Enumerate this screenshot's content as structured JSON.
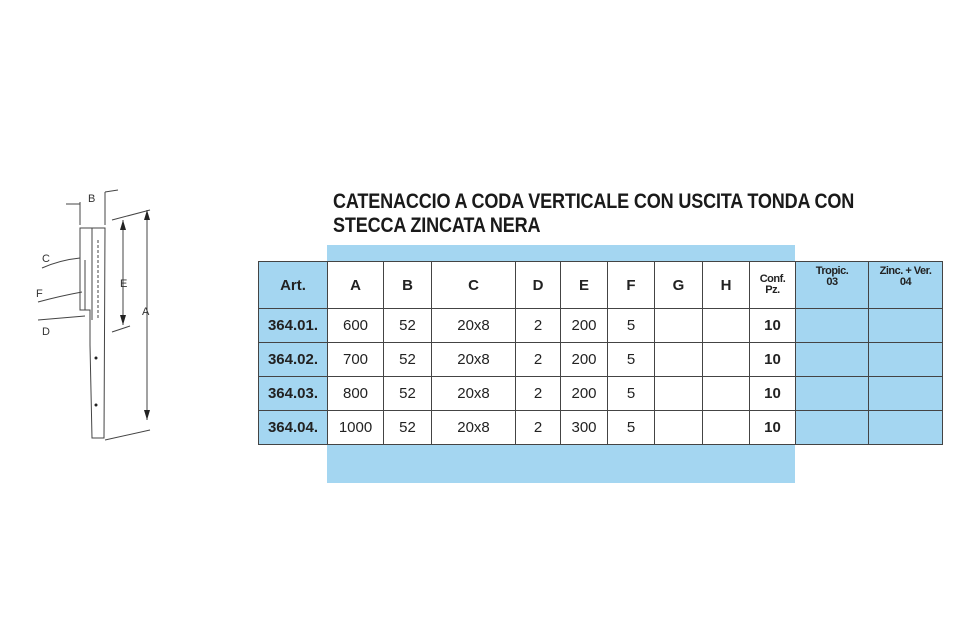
{
  "title": {
    "line1": "CATENACCIO A CODA VERTICALE CON USCITA TONDA CON",
    "line2": "STECCA ZINCATA NERA"
  },
  "drawing": {
    "labels": [
      "A",
      "B",
      "C",
      "D",
      "E",
      "F"
    ]
  },
  "table": {
    "headers": [
      "Art.",
      "A",
      "B",
      "C",
      "D",
      "E",
      "F",
      "G",
      "H",
      "Conf.",
      "Pz.",
      "Tropic.",
      "03",
      "Zinc. + Ver.",
      "04"
    ],
    "rows": [
      [
        "364.01.",
        "600",
        "52",
        "20x8",
        "2",
        "200",
        "5",
        "",
        "",
        "10",
        "",
        ""
      ],
      [
        "364.02.",
        "700",
        "52",
        "20x8",
        "2",
        "200",
        "5",
        "",
        "",
        "10",
        "",
        ""
      ],
      [
        "364.03.",
        "800",
        "52",
        "20x8",
        "2",
        "200",
        "5",
        "",
        "",
        "10",
        "",
        ""
      ],
      [
        "364.04.",
        "1000",
        "52",
        "20x8",
        "2",
        "300",
        "5",
        "",
        "",
        "10",
        "",
        ""
      ]
    ]
  },
  "colors": {
    "accent_blue": "#a4d6f1"
  }
}
